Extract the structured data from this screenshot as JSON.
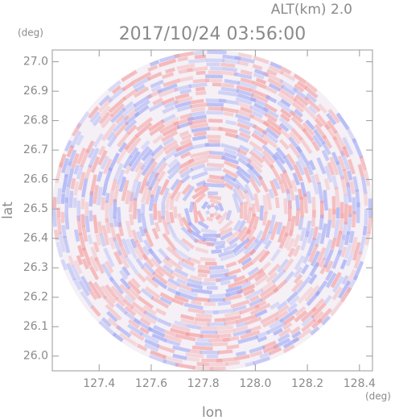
{
  "chart_data": {
    "type": "radar-ppi",
    "title": "2017/10/24 03:56:00",
    "subtitle": "ALT(km) 2.0",
    "x_label": "lon",
    "y_label": "lat",
    "x_unit": "(deg)",
    "y_unit": "(deg)",
    "xlim": [
      127.22,
      128.45
    ],
    "ylim": [
      25.95,
      27.04
    ],
    "xticks": [
      127.4,
      127.6,
      127.8,
      {
        "value": 128.0,
        "label": "128.0"
      },
      128.2,
      128.4
    ],
    "yticks": [
      {
        "value": 26.0,
        "label": "26.0"
      },
      26.1,
      26.2,
      26.3,
      26.4,
      26.5,
      26.6,
      26.7,
      26.8,
      26.9,
      {
        "value": 27.0,
        "label": "27.0"
      }
    ]
  }
}
